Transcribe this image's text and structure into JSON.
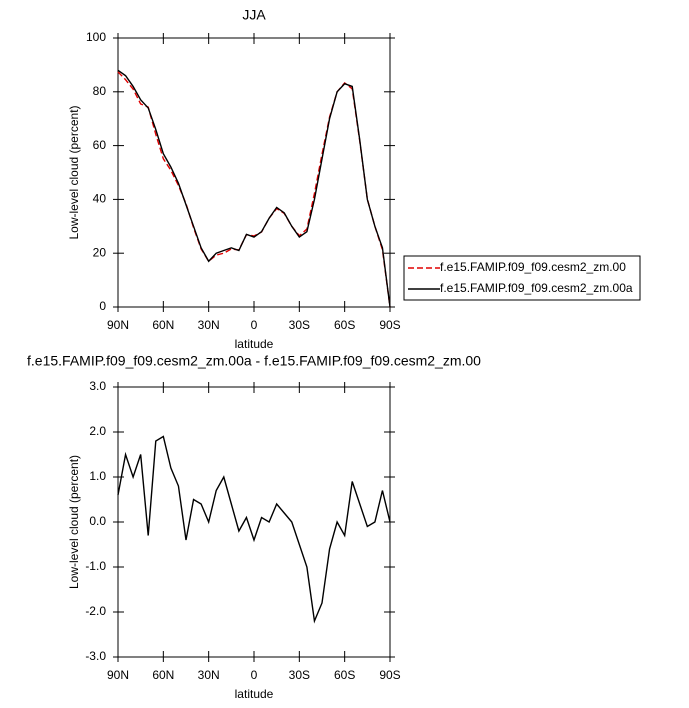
{
  "chart_data": [
    {
      "type": "line",
      "title": "JJA",
      "xlabel": "latitude",
      "ylabel": "Low-level cloud (percent)",
      "x": [
        90,
        85,
        80,
        75,
        70,
        65,
        60,
        55,
        50,
        45,
        40,
        35,
        30,
        25,
        20,
        15,
        10,
        5,
        0,
        -5,
        -10,
        -15,
        -20,
        -25,
        -30,
        -35,
        -40,
        -45,
        -50,
        -55,
        -60,
        -65,
        -70,
        -75,
        -80,
        -85,
        -90
      ],
      "xlim": [
        90,
        -90
      ],
      "xticks": [
        {
          "value": 90,
          "label": "90N"
        },
        {
          "value": 60,
          "label": "60N"
        },
        {
          "value": 30,
          "label": "30N"
        },
        0,
        {
          "value": -30,
          "label": "30S"
        },
        {
          "value": -60,
          "label": "60S"
        },
        {
          "value": -90,
          "label": "90S"
        }
      ],
      "ylim": [
        0,
        100
      ],
      "yticks": [
        0,
        20,
        40,
        60,
        80,
        100
      ],
      "legend": "outside right",
      "series": [
        {
          "name": "f.e15.FAMIP.f09_f09.cesm2_zm.00",
          "color": "#e00000",
          "style": "dashed",
          "values": [
            87.4,
            84.5,
            81,
            75.5,
            74.3,
            64.2,
            55.1,
            50.8,
            45.2,
            38.4,
            29.5,
            21.6,
            17,
            19.3,
            20,
            21.6,
            21.2,
            26.9,
            26.4,
            27.9,
            33,
            36.6,
            34.8,
            30,
            26.5,
            29,
            42.2,
            56.8,
            70.6,
            80,
            83.3,
            81.1,
            61.6,
            40.1,
            30,
            21.3,
            0
          ]
        },
        {
          "name": "f.e15.FAMIP.f09_f09.cesm2_zm.00a",
          "color": "#000000",
          "style": "solid",
          "values": [
            88,
            86,
            82,
            77,
            74,
            66,
            57,
            52,
            46,
            38,
            30,
            22,
            17,
            20,
            21,
            22,
            21,
            27,
            26,
            28,
            33,
            37,
            35,
            30,
            26,
            28,
            40,
            55,
            70,
            80,
            83,
            82,
            62,
            40,
            30,
            22,
            0
          ]
        }
      ]
    },
    {
      "type": "line",
      "title": "f.e15.FAMIP.f09_f09.cesm2_zm.00a - f.e15.FAMIP.f09_f09.cesm2_zm.00",
      "xlabel": "latitude",
      "ylabel": "Low-level cloud (percent)",
      "x": [
        90,
        85,
        80,
        75,
        70,
        65,
        60,
        55,
        50,
        45,
        40,
        35,
        30,
        25,
        20,
        15,
        10,
        5,
        0,
        -5,
        -10,
        -15,
        -20,
        -25,
        -30,
        -35,
        -40,
        -45,
        -50,
        -55,
        -60,
        -65,
        -70,
        -75,
        -80,
        -85,
        -90
      ],
      "xlim": [
        90,
        -90
      ],
      "xticks": [
        {
          "value": 90,
          "label": "90N"
        },
        {
          "value": 60,
          "label": "60N"
        },
        {
          "value": 30,
          "label": "30N"
        },
        0,
        {
          "value": -30,
          "label": "30S"
        },
        {
          "value": -60,
          "label": "60S"
        },
        {
          "value": -90,
          "label": "90S"
        }
      ],
      "ylim": [
        -3,
        3
      ],
      "yticks": [
        {
          "value": -3,
          "label": "-3.0"
        },
        {
          "value": -2,
          "label": "-2.0"
        },
        {
          "value": -1,
          "label": "-1.0"
        },
        {
          "value": 0,
          "label": "0.0"
        },
        {
          "value": 1,
          "label": "1.0"
        },
        {
          "value": 2,
          "label": "2.0"
        },
        {
          "value": 3,
          "label": "3.0"
        }
      ],
      "color": "#000000",
      "values": [
        0.6,
        1.5,
        1.0,
        1.5,
        -0.3,
        1.8,
        1.9,
        1.2,
        0.8,
        -0.4,
        0.5,
        0.4,
        0.0,
        0.7,
        1.0,
        0.4,
        -0.2,
        0.1,
        -0.4,
        0.1,
        0.0,
        0.4,
        0.2,
        0.0,
        -0.5,
        -1.0,
        -2.2,
        -1.8,
        -0.6,
        0.0,
        -0.3,
        0.9,
        0.4,
        -0.1,
        0.0,
        0.7,
        0.0
      ]
    }
  ]
}
